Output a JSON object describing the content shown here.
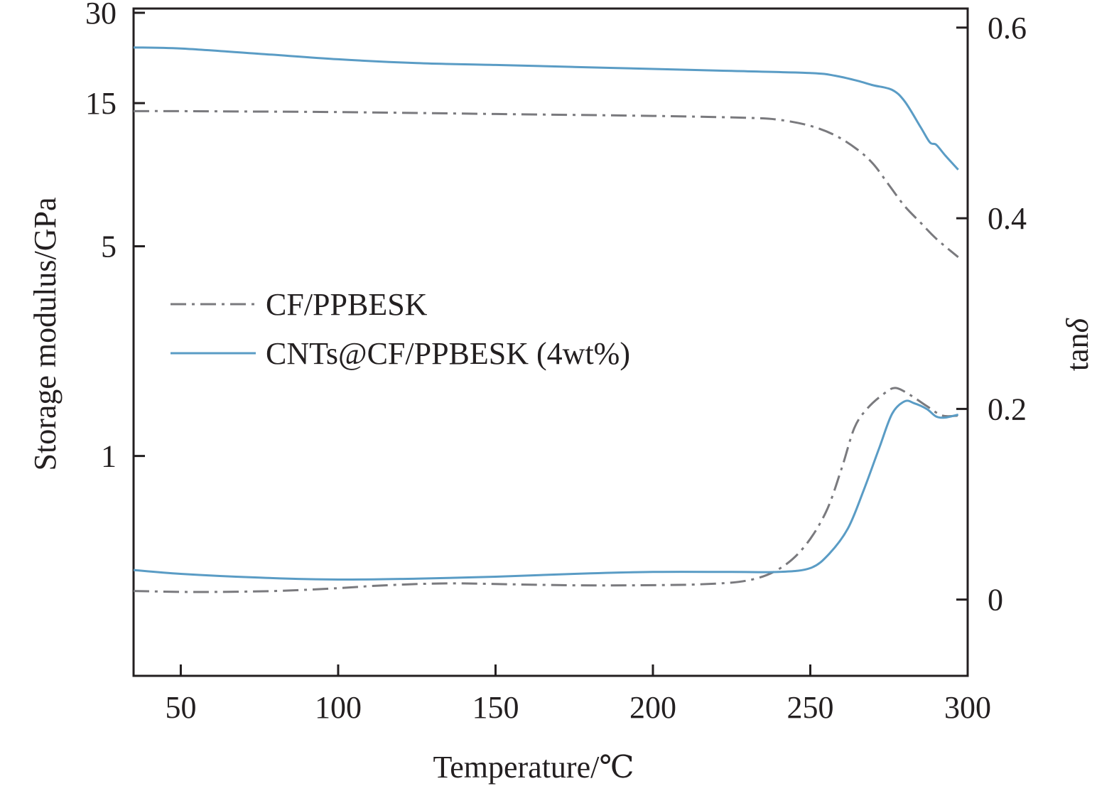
{
  "chart_data": {
    "type": "line",
    "x_axis": {
      "label": "Temperature/℃",
      "range": [
        35,
        300
      ],
      "ticks": [
        50,
        100,
        150,
        200,
        250,
        300
      ]
    },
    "y_left": {
      "label": "Storage modulus/GPa",
      "scale": "log",
      "range": [
        0.185,
        31
      ],
      "ticks": [
        {
          "value": 1,
          "label": "1"
        },
        {
          "value": 5,
          "label": "5"
        },
        {
          "value": 15,
          "label": "15"
        },
        {
          "value": 30,
          "label": "30"
        }
      ]
    },
    "y_right": {
      "label": "tanδ",
      "label_main": "tan",
      "label_symbol": "δ",
      "scale": "linear",
      "range": [
        -0.08,
        0.62
      ],
      "ticks": [
        {
          "value": 0,
          "label": "0"
        },
        {
          "value": 0.2,
          "label": "0.2"
        },
        {
          "value": 0.4,
          "label": "0.4"
        },
        {
          "value": 0.6,
          "label": "0.6"
        }
      ]
    },
    "legend": {
      "position": "middle-left",
      "entries": [
        {
          "series": "CF/PPBESK",
          "style": "dash-dot"
        },
        {
          "series": "CNTs@CF/PPBESK (4wt%)",
          "style": "solid"
        }
      ]
    },
    "series": [
      {
        "name": "CF/PPBESK",
        "quantity": "storage_modulus",
        "axis": "left",
        "color": "#7a7a7e",
        "style": "dash-dot",
        "x": [
          35,
          50,
          100,
          150,
          200,
          230,
          240,
          250,
          258,
          265,
          270,
          275,
          280,
          285,
          290,
          297
        ],
        "y": [
          14.1,
          14.1,
          14.0,
          13.8,
          13.6,
          13.4,
          13.2,
          12.6,
          11.7,
          10.5,
          9.4,
          8.0,
          6.8,
          6.0,
          5.3,
          4.6
        ]
      },
      {
        "name": "CNTs@CF/PPBESK (4wt%)",
        "quantity": "storage_modulus",
        "axis": "left",
        "color": "#5a9cc5",
        "style": "solid",
        "x": [
          35,
          50,
          75,
          100,
          125,
          150,
          175,
          200,
          225,
          250,
          258,
          265,
          270,
          276,
          280,
          285,
          288,
          290,
          293,
          297
        ],
        "y": [
          23.0,
          22.8,
          21.9,
          21.0,
          20.4,
          20.1,
          19.8,
          19.5,
          19.2,
          18.9,
          18.5,
          17.8,
          17.2,
          16.6,
          15.2,
          12.5,
          11.1,
          10.9,
          10.0,
          9.0
        ]
      },
      {
        "name": "CF/PPBESK",
        "quantity": "tan_delta",
        "axis": "right",
        "color": "#7a7a7e",
        "style": "dash-dot",
        "x": [
          35,
          55,
          80,
          100,
          115,
          135,
          155,
          175,
          195,
          215,
          230,
          240,
          248,
          255,
          260,
          264,
          268,
          273,
          277,
          282,
          287,
          292,
          297
        ],
        "y": [
          0.009,
          0.008,
          0.009,
          0.012,
          0.015,
          0.017,
          0.016,
          0.015,
          0.015,
          0.016,
          0.02,
          0.032,
          0.055,
          0.092,
          0.138,
          0.18,
          0.2,
          0.215,
          0.222,
          0.214,
          0.203,
          0.193,
          0.193
        ]
      },
      {
        "name": "CNTs@CF/PPBESK (4wt%)",
        "quantity": "tan_delta",
        "axis": "right",
        "color": "#5a9cc5",
        "style": "solid",
        "x": [
          35,
          50,
          75,
          100,
          125,
          150,
          175,
          200,
          225,
          240,
          250,
          256,
          262,
          267,
          272,
          276,
          280,
          283,
          287,
          290,
          293,
          297
        ],
        "y": [
          0.031,
          0.027,
          0.023,
          0.021,
          0.022,
          0.024,
          0.027,
          0.029,
          0.029,
          0.029,
          0.033,
          0.048,
          0.075,
          0.115,
          0.16,
          0.195,
          0.208,
          0.206,
          0.2,
          0.192,
          0.191,
          0.194
        ]
      }
    ]
  }
}
